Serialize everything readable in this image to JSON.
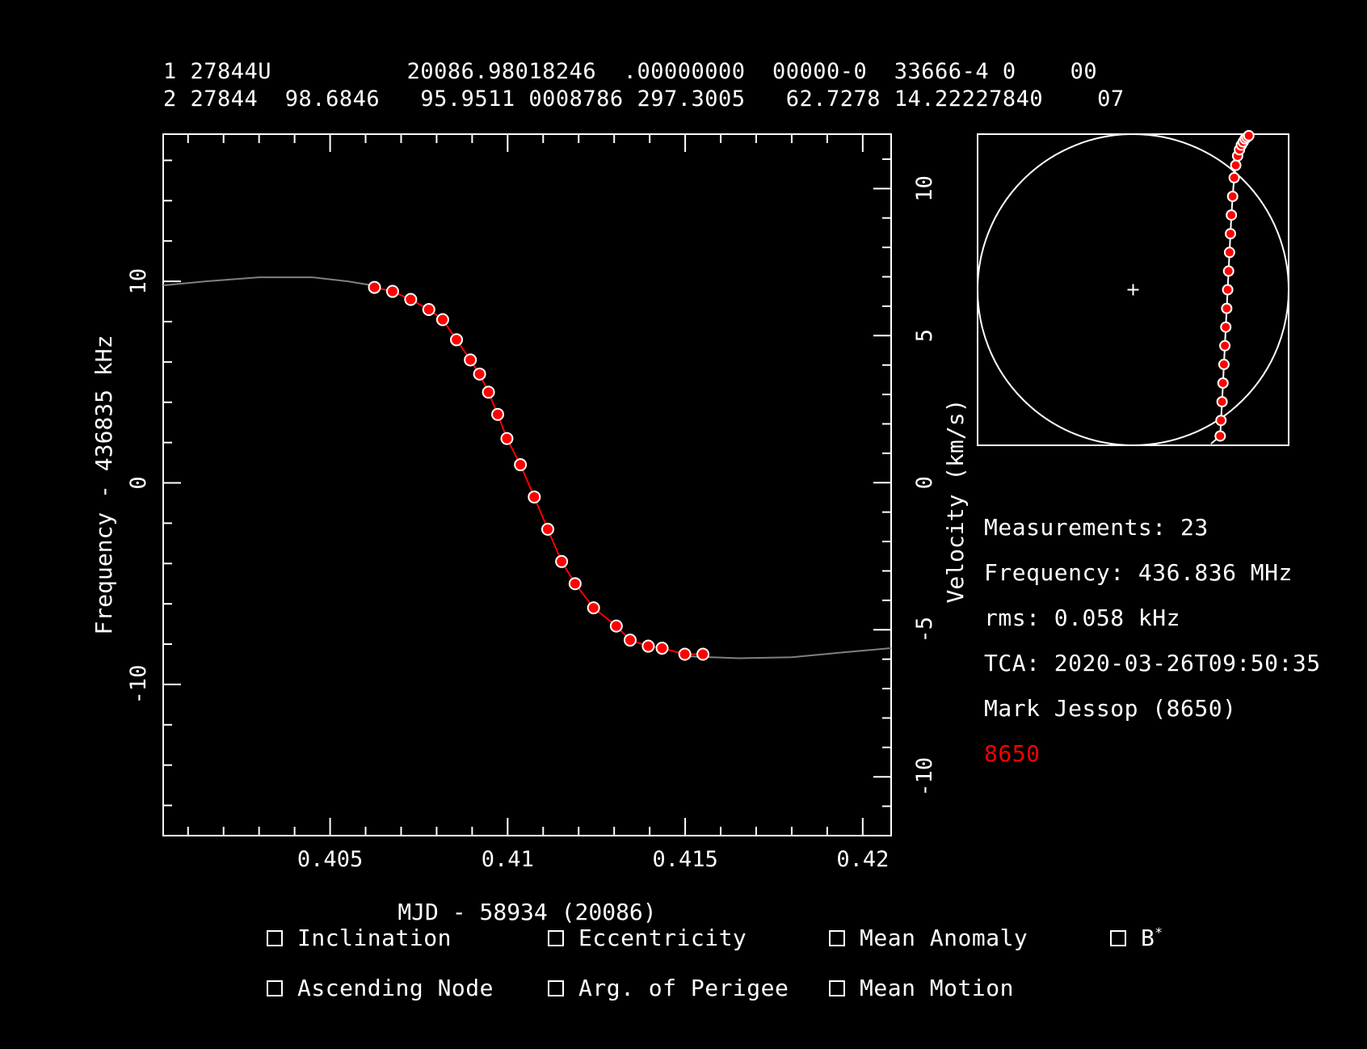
{
  "tle": {
    "line1": "1 27844U          20086.98018246  .00000000  00000-0  33666-4 0    00",
    "line2": "2 27844  98.6846   95.9511 0008786 297.3005   62.7278 14.22227840    07"
  },
  "info": {
    "measurements": "Measurements: 23",
    "frequency": "Frequency: 436.836 MHz",
    "rms": "rms: 0.058 kHz",
    "tca": "TCA: 2020-03-26T09:50:35",
    "observer": "Mark Jessop (8650)",
    "site": "8650",
    "site_color": "#ff0000"
  },
  "checkboxes": [
    {
      "label": "Inclination",
      "checked": false
    },
    {
      "label": "Eccentricity",
      "checked": false
    },
    {
      "label": "Mean Anomaly",
      "checked": false
    },
    {
      "label": "B*",
      "checked": false
    },
    {
      "label": "Ascending Node",
      "checked": false
    },
    {
      "label": "Arg. of Perigee",
      "checked": false
    },
    {
      "label": "Mean Motion",
      "checked": false
    }
  ],
  "chart_data": {
    "type": "scatter",
    "xlabel": "MJD - 58934 (20086)",
    "ylabel": "Frequency - 436835 kHz",
    "y2label": "Velocity (km/s)",
    "xlim": [
      0.4003,
      0.4208
    ],
    "ylim": [
      -17.5,
      17.3
    ],
    "y2lim": [
      -12.0,
      11.85
    ],
    "x_ticks": [
      0.405,
      0.41,
      0.415,
      0.42
    ],
    "x_tick_labels": [
      "0.405",
      "0.41",
      "0.415",
      "0.42"
    ],
    "y_ticks": [
      -10,
      0,
      10
    ],
    "y_tick_labels": [
      "-10",
      "0",
      "10"
    ],
    "y2_ticks": [
      -10,
      -5,
      0,
      5,
      10
    ],
    "y2_tick_labels": [
      "-10",
      "-5",
      "0",
      "5",
      "10"
    ],
    "point_color": "#ff0000",
    "fit_color": "#ff0000",
    "model_color": "#808080",
    "model_curve": {
      "x": [
        0.4003,
        0.4015,
        0.403,
        0.4045,
        0.4055,
        0.4062
      ],
      "y": [
        9.8,
        10.0,
        10.2,
        10.2,
        10.0,
        9.8
      ]
    },
    "model_curve_tail": {
      "x": [
        0.415,
        0.4165,
        0.418,
        0.4195,
        0.4208
      ],
      "y": [
        -8.6,
        -8.7,
        -8.65,
        -8.4,
        -8.2
      ]
    },
    "points": {
      "x": [
        0.40625,
        0.40676,
        0.40727,
        0.40778,
        0.40817,
        0.40856,
        0.40895,
        0.40921,
        0.40946,
        0.40972,
        0.40998,
        0.41036,
        0.41075,
        0.41113,
        0.41152,
        0.4119,
        0.41242,
        0.41306,
        0.41345,
        0.41396,
        0.41435,
        0.41499,
        0.4155
      ],
      "y": [
        9.7,
        9.5,
        9.1,
        8.6,
        8.1,
        7.1,
        6.1,
        5.4,
        4.5,
        3.4,
        2.2,
        0.9,
        -0.7,
        -2.3,
        -3.9,
        -5.0,
        -6.2,
        -7.1,
        -7.8,
        -8.1,
        -8.2,
        -8.5,
        -8.5
      ]
    },
    "polar": {
      "x": [
        0.56,
        0.565,
        0.572,
        0.578,
        0.584,
        0.59,
        0.596,
        0.602,
        0.608,
        0.614,
        0.62,
        0.626,
        0.632,
        0.64,
        0.65,
        0.66,
        0.672,
        0.684,
        0.696,
        0.708,
        0.72,
        0.732,
        0.744
      ],
      "y": [
        -0.94,
        -0.84,
        -0.72,
        -0.6,
        -0.48,
        -0.36,
        -0.24,
        -0.12,
        0.0,
        0.12,
        0.24,
        0.36,
        0.48,
        0.6,
        0.72,
        0.8,
        0.86,
        0.9,
        0.93,
        0.95,
        0.97,
        0.98,
        0.99
      ]
    }
  }
}
